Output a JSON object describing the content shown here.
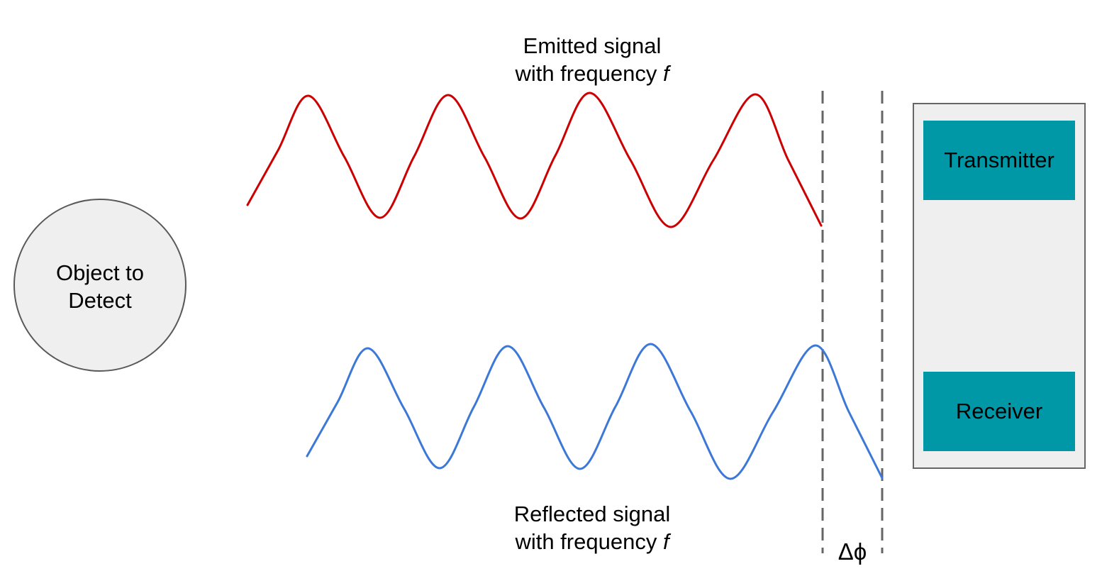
{
  "labels": {
    "emitted_line1": "Emitted signal",
    "emitted_line2_prefix": "with frequency ",
    "emitted_line2_var": "f",
    "reflected_line1": "Reflected signal",
    "reflected_line2_prefix": "with frequency ",
    "reflected_line2_var": "f",
    "object_line1": "Object to",
    "object_line2": "Detect",
    "transmitter": "Transmitter",
    "receiver": "Receiver",
    "phase_shift": "Δϕ"
  },
  "colors": {
    "emitted_wave": "#cc0000",
    "reflected_wave": "#3c78d8",
    "device_box_fill": "#efefef",
    "device_box_stroke": "#666666",
    "component_fill": "#0097a7",
    "object_fill": "#efefef",
    "object_stroke": "#595959",
    "dashed_line": "#666666"
  }
}
